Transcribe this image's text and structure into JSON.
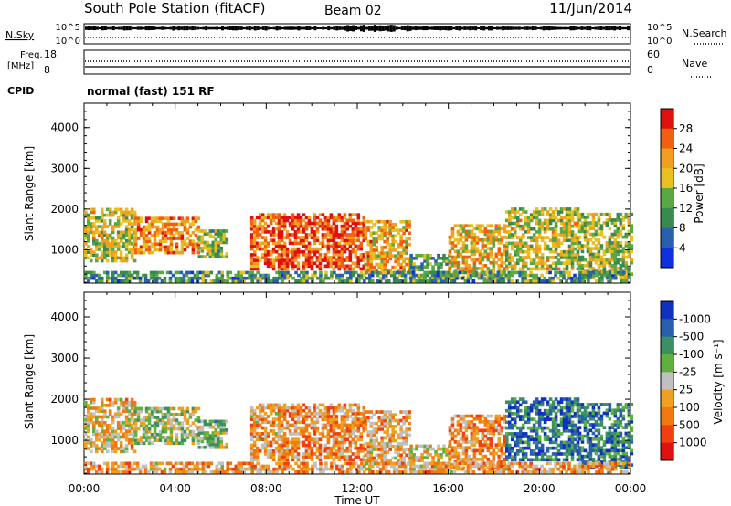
{
  "header": {
    "station": "South Pole Station (fitACF)",
    "beam": "Beam 02",
    "date": "11/Jun/2014"
  },
  "top_panel": {
    "left_label": "N.Sky",
    "left_ticks": [
      "10^5",
      "10^0"
    ],
    "right_label": "N.Search",
    "right_ticks": [
      "10^5",
      "10^0"
    ]
  },
  "freq_panel": {
    "left_label_1": "Freq.",
    "left_label_2": "[MHz]",
    "left_ticks": [
      "18",
      "8"
    ],
    "right_label": "Nave",
    "right_ticks": [
      "60",
      "0"
    ]
  },
  "cpid": {
    "label": "CPID",
    "value": "normal (fast) 151 RF"
  },
  "colors": {
    "power": [
      "#1030e0",
      "#2a5fb0",
      "#3a8a50",
      "#5aa845",
      "#e8c020",
      "#f0a020",
      "#f06010",
      "#e01010"
    ],
    "velocity": [
      "#e01010",
      "#f04010",
      "#f07a10",
      "#f0a020",
      "#c0c0c0",
      "#60b040",
      "#3a9060",
      "#2a5fb0",
      "#1030c0"
    ]
  },
  "chart_data": [
    {
      "type": "heatmap",
      "title": "Power",
      "xlabel": "",
      "ylabel": "Slant Range [km]",
      "x_ticks": [
        "00:00",
        "04:00",
        "08:00",
        "12:00",
        "16:00",
        "20:00",
        "00:00"
      ],
      "xlim_hours": [
        0,
        24
      ],
      "y_ticks": [
        1000,
        2000,
        3000,
        4000
      ],
      "ylim": [
        180,
        4600
      ],
      "colorbar": {
        "label": "Power [dB]",
        "ticks": [
          "4",
          "8",
          "12",
          "16",
          "20",
          "24",
          "28"
        ],
        "range": [
          0,
          32
        ]
      }
    },
    {
      "type": "heatmap",
      "title": "Velocity",
      "xlabel": "Time UT",
      "ylabel": "Slant Range [km]",
      "x_ticks": [
        "00:00",
        "04:00",
        "08:00",
        "12:00",
        "16:00",
        "20:00",
        "00:00"
      ],
      "xlim_hours": [
        0,
        24
      ],
      "y_ticks": [
        1000,
        2000,
        3000,
        4000
      ],
      "ylim": [
        180,
        4600
      ],
      "colorbar": {
        "label": "Velocity [m s⁻¹]",
        "ticks": [
          "1000",
          "500",
          "100",
          "25",
          "-25",
          "-100",
          "-500",
          "-1000"
        ]
      }
    }
  ]
}
